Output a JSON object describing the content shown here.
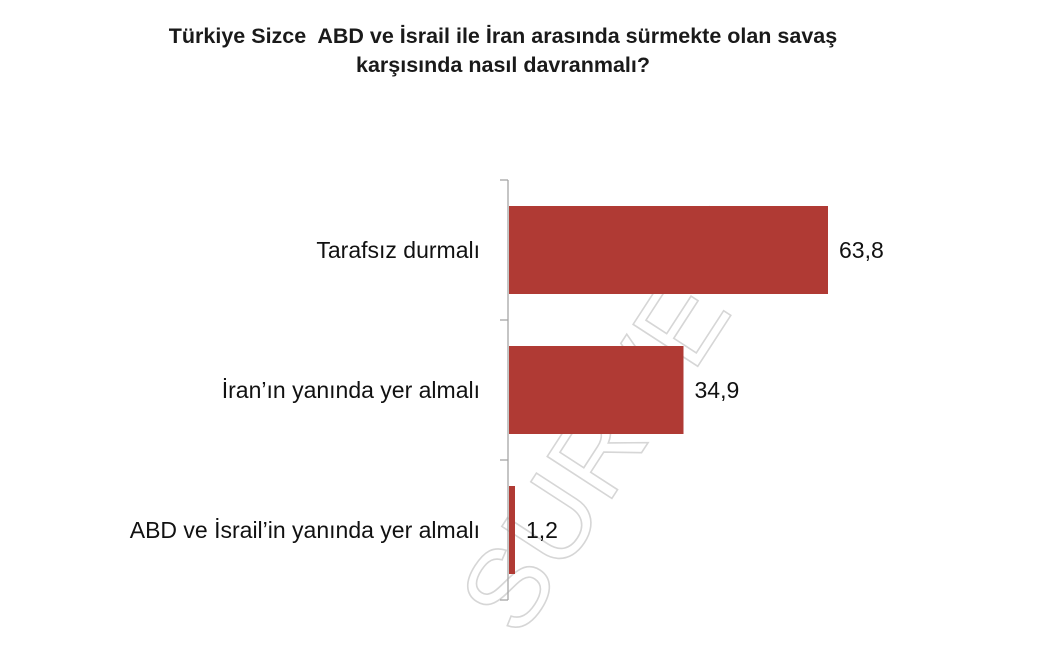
{
  "chart_data": {
    "type": "bar",
    "orientation": "horizontal",
    "title_lines": [
      "Türkiye Sizce  ABD ve İsrail ile İran arasında sürmekte olan savaş",
      "karşısında nasıl davranmalı?"
    ],
    "categories": [
      "Tarafsız durmalı",
      "İran’ın yanında yer almalı",
      "ABD ve İsrail’in yanında yer almalı"
    ],
    "values": [
      63.8,
      34.9,
      1.2
    ],
    "value_labels": [
      "63,8",
      "34,9",
      "1,2"
    ],
    "xlim": [
      0,
      100
    ],
    "bar_color": "#b03a34",
    "axis_color": "#a6a6a6",
    "grid": false,
    "legend": "none",
    "watermark": "SURVEY"
  }
}
